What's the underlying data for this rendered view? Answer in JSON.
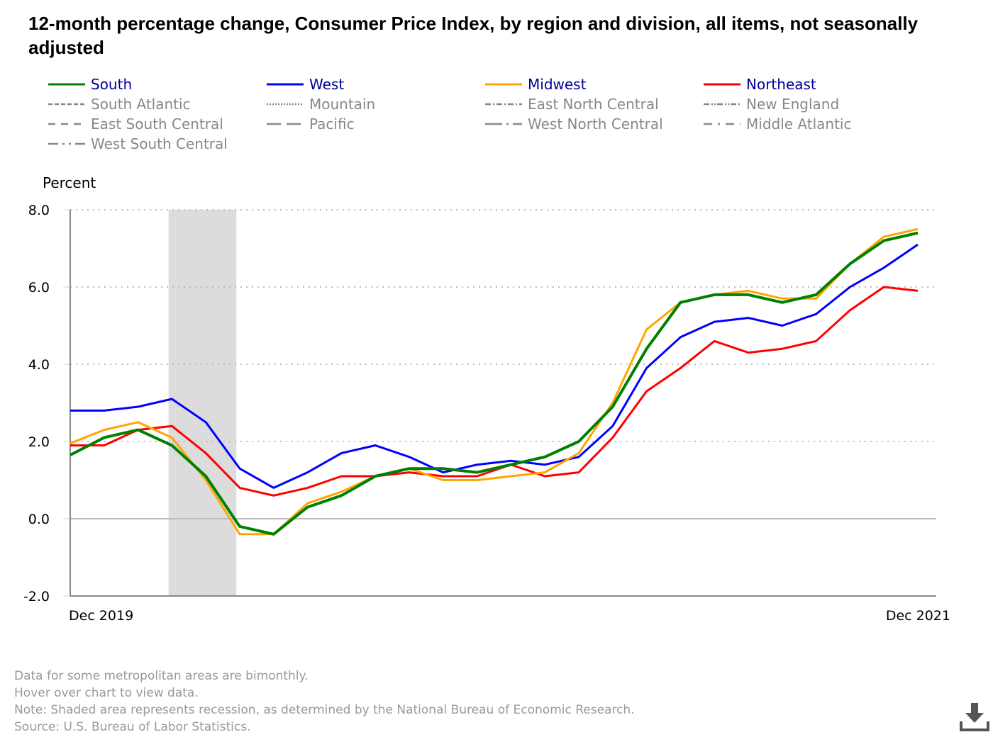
{
  "chart_data": {
    "type": "line",
    "title": "12-month percentage change, Consumer Price Index, by region and division, all items, not seasonally adjusted",
    "ylabel": "Percent",
    "ylim": [
      -2,
      8
    ],
    "yticks": [
      "8.0",
      "6.0",
      "4.0",
      "2.0",
      "0.0",
      "-2.0"
    ],
    "ytick_values": [
      8,
      6,
      4,
      2,
      0,
      -2
    ],
    "x_first_label": "Dec 2019",
    "x_last_label": "Dec 2021",
    "recession_index_range": [
      2.9,
      4.9
    ],
    "grid": true,
    "legend_position": "top",
    "series": [
      {
        "name": "South",
        "color": "#008000",
        "width": 4,
        "values": [
          1.65,
          2.1,
          2.3,
          1.9,
          1.1,
          -0.2,
          -0.4,
          0.3,
          0.6,
          1.1,
          1.3,
          1.3,
          1.2,
          1.4,
          1.6,
          2.0,
          2.9,
          4.4,
          5.6,
          5.8,
          5.8,
          5.6,
          5.8,
          6.6,
          7.2,
          7.4
        ]
      },
      {
        "name": "West",
        "color": "#0000ff",
        "width": 3,
        "values": [
          2.8,
          2.8,
          2.9,
          3.1,
          2.5,
          1.3,
          0.8,
          1.2,
          1.7,
          1.9,
          1.6,
          1.2,
          1.4,
          1.5,
          1.4,
          1.6,
          2.4,
          3.9,
          4.7,
          5.1,
          5.2,
          5.0,
          5.3,
          6.0,
          6.5,
          7.1
        ]
      },
      {
        "name": "Midwest",
        "color": "#ffa500",
        "width": 3,
        "values": [
          1.95,
          2.3,
          2.5,
          2.1,
          1.0,
          -0.4,
          -0.4,
          0.4,
          0.7,
          1.1,
          1.3,
          1.0,
          1.0,
          1.1,
          1.2,
          1.7,
          3.0,
          4.9,
          5.6,
          5.8,
          5.9,
          5.7,
          5.7,
          6.6,
          7.3,
          7.5
        ]
      },
      {
        "name": "Northeast",
        "color": "#ff0000",
        "width": 3,
        "values": [
          1.9,
          1.9,
          2.3,
          2.4,
          1.7,
          0.8,
          0.6,
          0.8,
          1.1,
          1.1,
          1.2,
          1.1,
          1.1,
          1.4,
          1.1,
          1.2,
          2.1,
          3.3,
          3.9,
          4.6,
          4.3,
          4.4,
          4.6,
          5.4,
          6.0,
          5.9
        ]
      }
    ],
    "legend": [
      [
        {
          "name": "South",
          "dash": "solid",
          "color": "#008000",
          "active": true
        },
        {
          "name": "South Atlantic",
          "dash": "6,3"
        },
        {
          "name": "East South Central",
          "dash": "10,8"
        },
        {
          "name": "West South Central",
          "dash": "14,6,3,6,3,6"
        }
      ],
      [
        {
          "name": "West",
          "dash": "solid",
          "color": "#0000ff",
          "active": true
        },
        {
          "name": "Mountain",
          "dash": "2,2"
        },
        {
          "name": "Pacific",
          "dash": "20,8"
        }
      ],
      [
        {
          "name": "Midwest",
          "dash": "solid",
          "color": "#ffa500",
          "active": true
        },
        {
          "name": "East North Central",
          "dash": "8,3,2,3"
        },
        {
          "name": "West North Central",
          "dash": "24,6,3,6"
        }
      ],
      [
        {
          "name": "Northeast",
          "dash": "solid",
          "color": "#ff0000",
          "active": true
        },
        {
          "name": "New England",
          "dash": "8,3,2,2,2,2"
        },
        {
          "name": "Middle Atlantic",
          "dash": "12,8,3,8"
        }
      ]
    ]
  },
  "notes": [
    "Data for some metropolitan areas are bimonthly.",
    "Hover over chart to view data.",
    "Note: Shaded area represents recession, as determined by the National Bureau of Economic Research.",
    "Source: U.S. Bureau of Labor Statistics."
  ]
}
